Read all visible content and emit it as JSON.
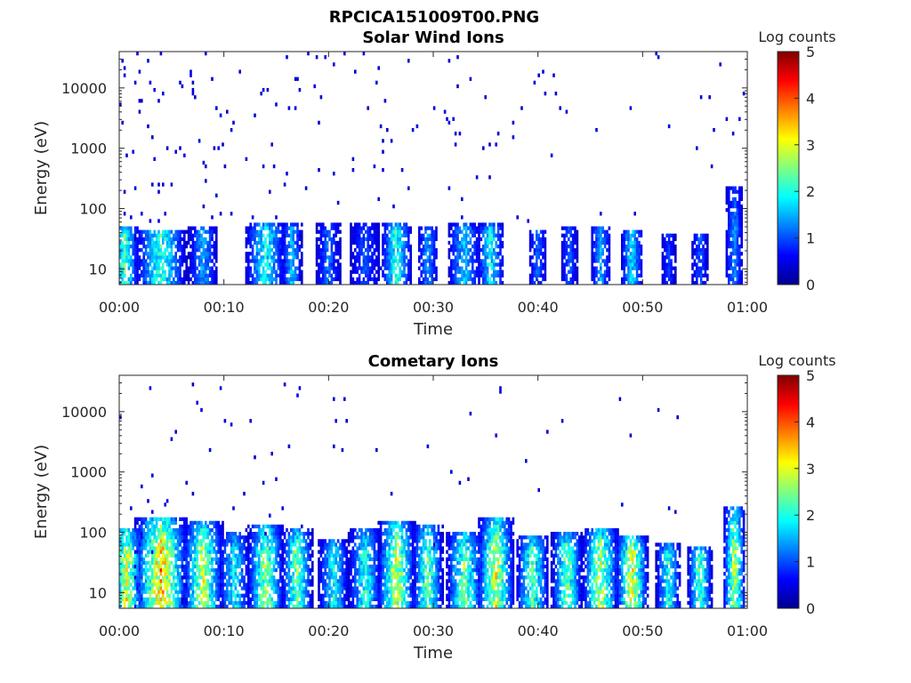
{
  "figure_title": "RPCICA151009T00.PNG",
  "colors": {
    "colormap": [
      "#00008f",
      "#0000ff",
      "#0070ff",
      "#00dfff",
      "#50ffaf",
      "#bfff40",
      "#ffff00",
      "#ff8f00",
      "#ff2000",
      "#800000"
    ]
  },
  "chart_data": [
    {
      "type": "heatmap",
      "title": "Solar Wind Ions",
      "xlabel": "Time",
      "ylabel": "Energy (eV)",
      "x_ticks": [
        "00:00",
        "00:10",
        "00:20",
        "00:30",
        "00:40",
        "00:50",
        "01:00"
      ],
      "x_range_minutes": [
        0,
        60
      ],
      "y_scale": "log",
      "y_range_eV": [
        5.5,
        40000
      ],
      "y_ticks": [
        {
          "value": 10,
          "label": "10"
        },
        {
          "value": 100,
          "label": "100"
        },
        {
          "value": 1000,
          "label": "1000"
        },
        {
          "value": 10000,
          "label": "10000"
        }
      ],
      "colorbar": {
        "label": "Log counts",
        "range": [
          0,
          5
        ],
        "ticks": [
          "0",
          "1",
          "2",
          "3",
          "4",
          "5"
        ]
      },
      "bursts": [
        {
          "t": 0.5,
          "w": 1.4,
          "top": 50,
          "peak": 2.2
        },
        {
          "t": 4.0,
          "w": 2.5,
          "top": 45,
          "peak": 2.0
        },
        {
          "t": 8.0,
          "w": 1.4,
          "top": 50,
          "peak": 1.3
        },
        {
          "t": 14.0,
          "w": 2.0,
          "top": 60,
          "peak": 1.8
        },
        {
          "t": 16.5,
          "w": 1.0,
          "top": 55,
          "peak": 1.5
        },
        {
          "t": 20.0,
          "w": 1.2,
          "top": 60,
          "peak": 1.0
        },
        {
          "t": 23.5,
          "w": 1.5,
          "top": 55,
          "peak": 0.8
        },
        {
          "t": 26.5,
          "w": 1.5,
          "top": 60,
          "peak": 2.0
        },
        {
          "t": 29.5,
          "w": 1.0,
          "top": 50,
          "peak": 1.2
        },
        {
          "t": 33.0,
          "w": 1.6,
          "top": 55,
          "peak": 1.5
        },
        {
          "t": 35.5,
          "w": 1.3,
          "top": 55,
          "peak": 1.8
        },
        {
          "t": 40.0,
          "w": 0.9,
          "top": 45,
          "peak": 0.9
        },
        {
          "t": 43.0,
          "w": 0.8,
          "top": 50,
          "peak": 0.9
        },
        {
          "t": 46.0,
          "w": 1.0,
          "top": 50,
          "peak": 1.3
        },
        {
          "t": 49.0,
          "w": 1.1,
          "top": 45,
          "peak": 1.6
        },
        {
          "t": 52.5,
          "w": 0.7,
          "top": 40,
          "peak": 0.7
        },
        {
          "t": 55.5,
          "w": 0.8,
          "top": 40,
          "peak": 0.9
        },
        {
          "t": 58.8,
          "w": 0.9,
          "top": 220,
          "peak": 1.2
        }
      ],
      "scatter_density": 0.55,
      "scatter_decay_minutes": 30
    },
    {
      "type": "heatmap",
      "title": "Cometary Ions",
      "xlabel": "Time",
      "ylabel": "Energy (eV)",
      "x_ticks": [
        "00:00",
        "00:10",
        "00:20",
        "00:30",
        "00:40",
        "00:50",
        "01:00"
      ],
      "x_range_minutes": [
        0,
        60
      ],
      "y_scale": "log",
      "y_range_eV": [
        5.5,
        40000
      ],
      "y_ticks": [
        {
          "value": 10,
          "label": "10"
        },
        {
          "value": 100,
          "label": "100"
        },
        {
          "value": 1000,
          "label": "1000"
        },
        {
          "value": 10000,
          "label": "10000"
        }
      ],
      "colorbar": {
        "label": "Log counts",
        "range": [
          0,
          5
        ],
        "ticks": [
          "0",
          "1",
          "2",
          "3",
          "4",
          "5"
        ]
      },
      "bursts": [
        {
          "t": 0.7,
          "w": 1.6,
          "top": 110,
          "peak": 3.0
        },
        {
          "t": 4.0,
          "w": 2.6,
          "top": 180,
          "peak": 3.5
        },
        {
          "t": 8.0,
          "w": 2.0,
          "top": 150,
          "peak": 2.8
        },
        {
          "t": 11.0,
          "w": 1.5,
          "top": 100,
          "peak": 1.8
        },
        {
          "t": 14.0,
          "w": 1.8,
          "top": 140,
          "peak": 2.6
        },
        {
          "t": 17.0,
          "w": 1.5,
          "top": 120,
          "peak": 2.5
        },
        {
          "t": 20.5,
          "w": 1.5,
          "top": 80,
          "peak": 1.8
        },
        {
          "t": 23.5,
          "w": 1.6,
          "top": 110,
          "peak": 2.0
        },
        {
          "t": 26.5,
          "w": 1.8,
          "top": 160,
          "peak": 3.0
        },
        {
          "t": 29.5,
          "w": 1.5,
          "top": 130,
          "peak": 2.4
        },
        {
          "t": 33.0,
          "w": 1.8,
          "top": 100,
          "peak": 2.4
        },
        {
          "t": 36.0,
          "w": 1.8,
          "top": 180,
          "peak": 3.0
        },
        {
          "t": 39.5,
          "w": 1.6,
          "top": 90,
          "peak": 2.3
        },
        {
          "t": 42.8,
          "w": 1.5,
          "top": 100,
          "peak": 2.5
        },
        {
          "t": 46.0,
          "w": 1.8,
          "top": 120,
          "peak": 2.8
        },
        {
          "t": 49.0,
          "w": 1.6,
          "top": 90,
          "peak": 3.0
        },
        {
          "t": 52.5,
          "w": 1.2,
          "top": 70,
          "peak": 2.0
        },
        {
          "t": 55.5,
          "w": 1.2,
          "top": 60,
          "peak": 2.3
        },
        {
          "t": 58.8,
          "w": 1.1,
          "top": 260,
          "peak": 2.8
        }
      ],
      "scatter_density": 0.18,
      "scatter_decay_minutes": 40
    }
  ]
}
